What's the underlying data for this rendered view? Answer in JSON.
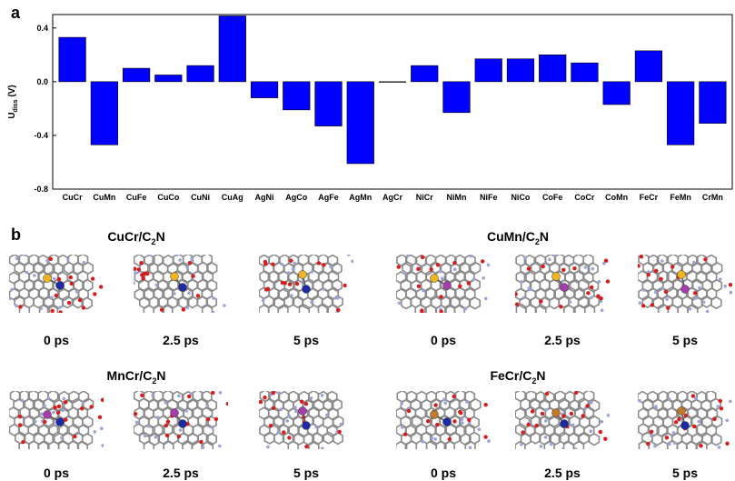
{
  "panel_a_label": "a",
  "panel_b_label": "b",
  "chart_data": {
    "type": "bar",
    "ylabel_main": "U",
    "ylabel_sub": "diss",
    "ylabel_unit": " (V)",
    "ylim": [
      -0.8,
      0.5
    ],
    "yticks": [
      "0.4",
      "0.0",
      "-0.4",
      "-0.8"
    ],
    "ytick_values": [
      0.4,
      0.0,
      -0.4,
      -0.8
    ],
    "bar_color": "#0000ff",
    "categories": [
      "CuCr",
      "CuMn",
      "CuFe",
      "CuCo",
      "CuNi",
      "CuAg",
      "AgNi",
      "AgCo",
      "AgFe",
      "AgMn",
      "AgCr",
      "NiCr",
      "NiMn",
      "NiFe",
      "NiCo",
      "CoFe",
      "CoCr",
      "CoMn",
      "FeCr",
      "FeMn",
      "CrMn"
    ],
    "values": [
      0.33,
      -0.47,
      0.1,
      0.05,
      0.12,
      0.49,
      -0.12,
      -0.21,
      -0.33,
      -0.61,
      0.0,
      0.12,
      -0.23,
      0.17,
      0.17,
      0.2,
      0.14,
      -0.17,
      0.23,
      -0.47,
      -0.31
    ]
  },
  "groups": [
    {
      "title": "CuCr/C",
      "sub": "2",
      "suffix": "N",
      "metal1": "#f2b320",
      "metal2": "#1d2aa8",
      "times": [
        "0 ps",
        "2.5 ps",
        "5 ps"
      ]
    },
    {
      "title": "CuMn/C",
      "sub": "2",
      "suffix": "N",
      "metal1": "#f2b320",
      "metal2": "#a83bb0",
      "times": [
        "0 ps",
        "2.5 ps",
        "5 ps"
      ]
    },
    {
      "title": "MnCr/C",
      "sub": "2",
      "suffix": "N",
      "metal1": "#a83bb0",
      "metal2": "#1d2aa8",
      "times": [
        "0 ps",
        "2.5 ps",
        "5 ps"
      ]
    },
    {
      "title": "FeCr/C",
      "sub": "2",
      "suffix": "N",
      "metal1": "#c07a2a",
      "metal2": "#1d2aa8",
      "times": [
        "0 ps",
        "2.5 ps",
        "5 ps"
      ]
    }
  ]
}
